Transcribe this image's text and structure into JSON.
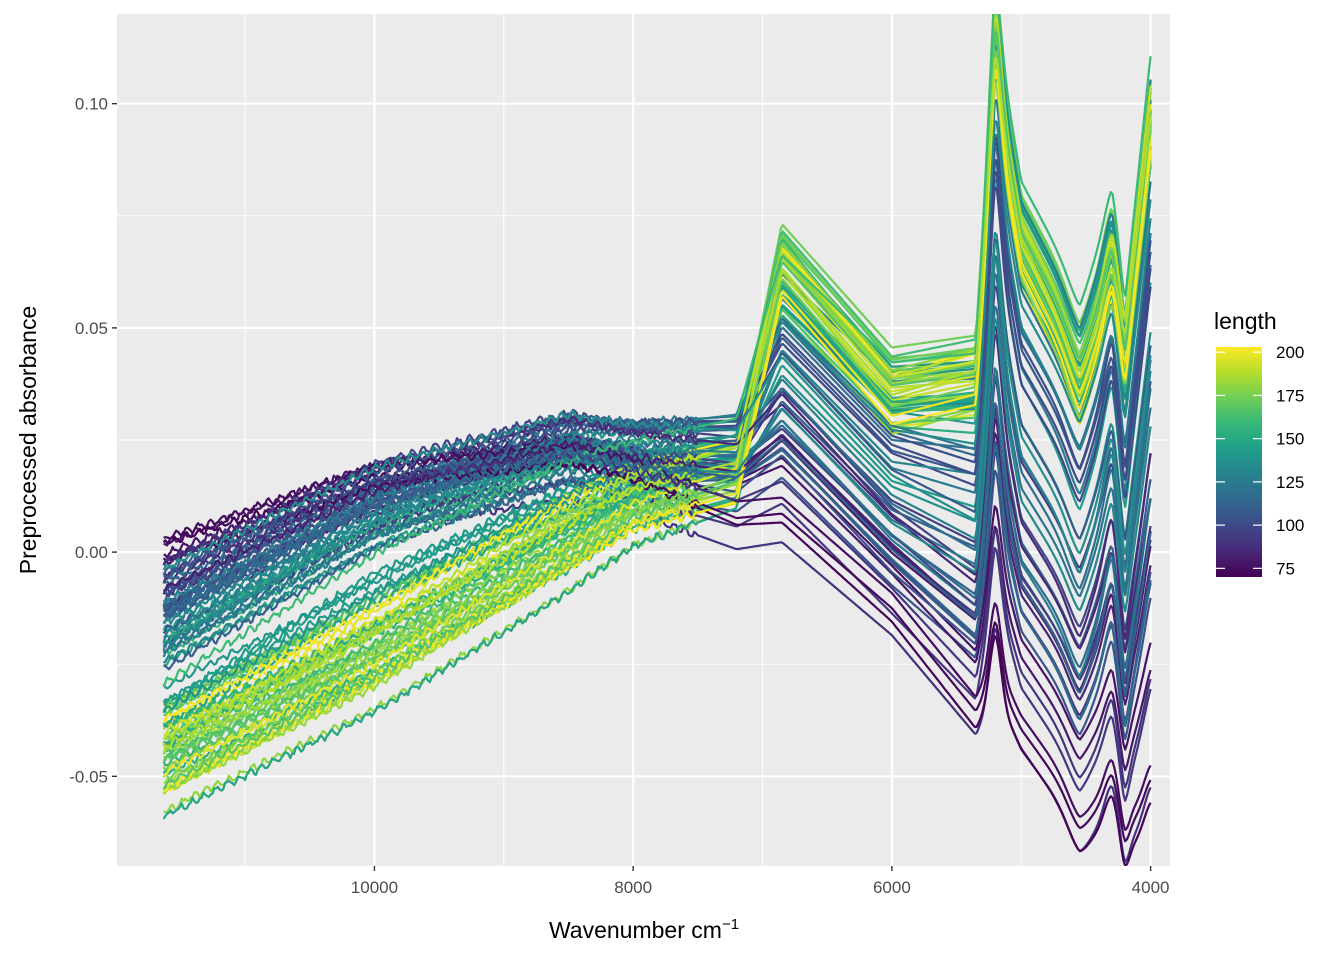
{
  "chart_data": {
    "type": "line",
    "title": "",
    "xlabel": "Wavenumber cm",
    "xlabel_superscript": "−1",
    "ylabel": "Preprocessed absorbance",
    "x_reversed": true,
    "xlim": [
      11990,
      3850
    ],
    "ylim": [
      -0.07,
      0.12
    ],
    "grid": true,
    "x_ticks": [
      10000,
      8000,
      6000,
      4000
    ],
    "x_tick_labels": [
      "10000",
      "8000",
      "6000",
      "4000"
    ],
    "y_ticks": [
      -0.05,
      0.0,
      0.05,
      0.1
    ],
    "y_tick_labels": [
      "-0.05",
      "0.00",
      "0.05",
      "0.10"
    ],
    "n_spectra": 100,
    "x_range_of_spectra": [
      11630,
      3990
    ],
    "legend": {
      "title": "length",
      "type": "colorbar",
      "placement": "right",
      "min": 70,
      "max": 203,
      "ticks": [
        75,
        100,
        125,
        150,
        175,
        200
      ],
      "tick_labels": [
        "75",
        "100",
        "125",
        "150",
        "175",
        "200"
      ],
      "colormap": "viridis",
      "stops": [
        "#440154",
        "#482878",
        "#3e4989",
        "#31688e",
        "#26828e",
        "#1f9e89",
        "#35b779",
        "#6ece58",
        "#b5de2b",
        "#fde725"
      ]
    },
    "representative_series": [
      {
        "length": 72,
        "x": [
          11630,
          10000,
          8500,
          8000,
          7200,
          6850,
          6000,
          5350,
          5200,
          5000,
          4550,
          4300,
          4200,
          3990
        ],
        "y": [
          -0.005,
          0.012,
          0.017,
          0.014,
          0.005,
          0.006,
          -0.015,
          -0.038,
          -0.03,
          -0.042,
          -0.06,
          -0.058,
          -0.064,
          -0.059
        ]
      },
      {
        "length": 110,
        "x": [
          11630,
          10000,
          8500,
          8000,
          7200,
          6850,
          6000,
          5350,
          5200,
          5000,
          4550,
          4300,
          4200,
          3990
        ],
        "y": [
          -0.01,
          0.013,
          0.025,
          0.022,
          0.02,
          0.03,
          0.004,
          -0.01,
          0.03,
          0.0,
          -0.02,
          -0.005,
          -0.022,
          0.01
        ]
      },
      {
        "length": 140,
        "x": [
          11630,
          10000,
          8500,
          8000,
          7200,
          6850,
          6000,
          5350,
          5200,
          5000,
          4550,
          4300,
          4200,
          3990
        ],
        "y": [
          -0.024,
          0.004,
          0.021,
          0.023,
          0.026,
          0.058,
          0.034,
          0.035,
          0.11,
          0.075,
          0.05,
          0.068,
          0.05,
          0.1
        ]
      },
      {
        "length": 185,
        "x": [
          11630,
          10000,
          8500,
          8000,
          7200,
          6850,
          6000,
          5350,
          5200,
          5000,
          4550,
          4300,
          4200,
          3990
        ],
        "y": [
          -0.05,
          -0.028,
          -0.002,
          0.008,
          0.016,
          0.067,
          0.038,
          0.04,
          0.106,
          0.07,
          0.045,
          0.06,
          0.045,
          0.09
        ]
      },
      {
        "length": 200,
        "x": [
          11630,
          10000,
          8500,
          8000,
          7200,
          6850,
          6000,
          5350,
          5200,
          5000,
          4550,
          4300,
          4200,
          3990
        ],
        "y": [
          -0.042,
          -0.018,
          0.006,
          0.013,
          0.018,
          0.061,
          0.032,
          0.037,
          0.099,
          0.066,
          0.039,
          0.055,
          0.046,
          0.09
        ]
      }
    ]
  }
}
